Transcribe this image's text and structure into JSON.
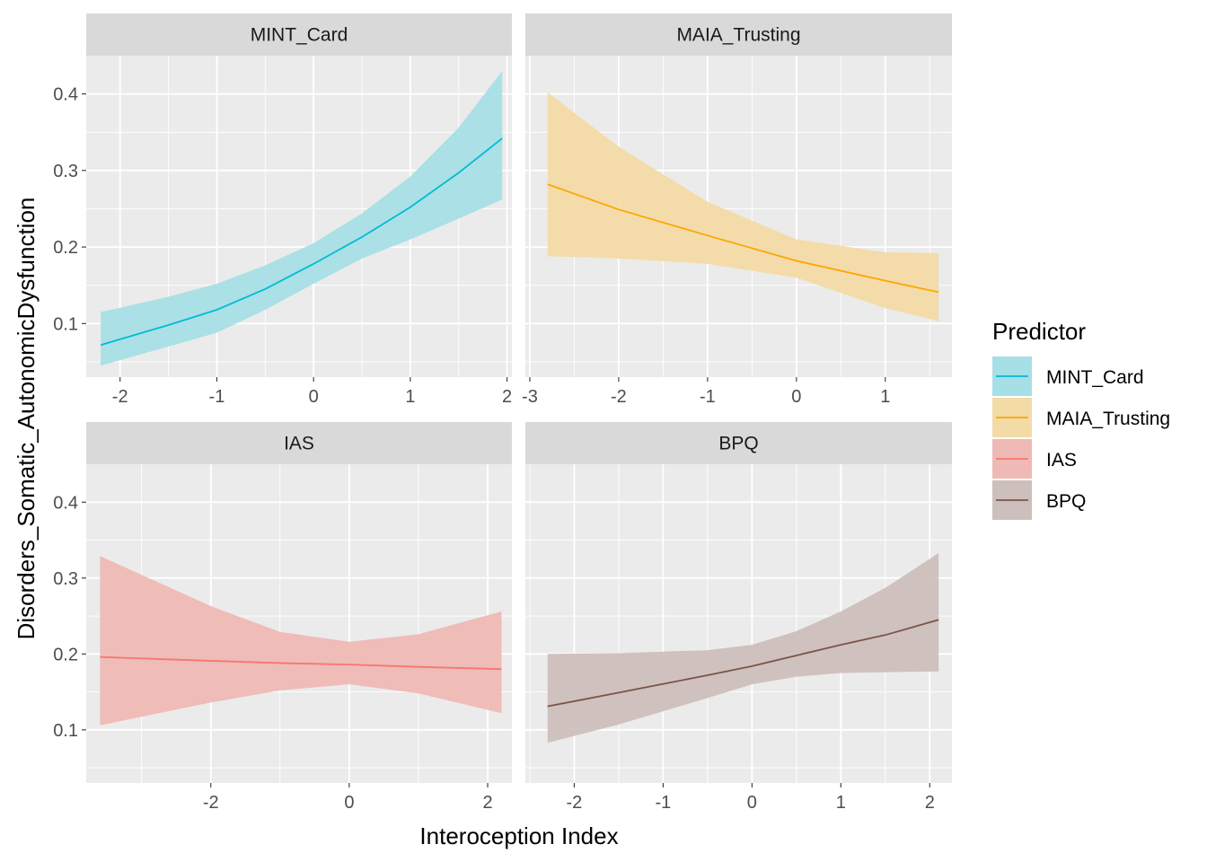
{
  "chart_data": {
    "type": "line",
    "facet_layout": "2x2 grid, free x scales, shared y scale",
    "xlabel": "Interoception Index",
    "ylabel": "Disorders_Somatic_AutonomicDysfunction",
    "ylim": [
      0.03,
      0.45
    ],
    "y_ticks": [
      0.1,
      0.2,
      0.3,
      0.4
    ],
    "y_tick_labels": [
      "0.1",
      "0.2",
      "0.3",
      "0.4"
    ],
    "grid": true,
    "legend": {
      "title": "Predictor",
      "placement": "right",
      "entries": [
        "MINT_Card",
        "MAIA_Trusting",
        "IAS",
        "BPQ"
      ]
    },
    "panels": [
      {
        "name": "MINT_Card",
        "color": "#00BCD4",
        "fill": "#A6DFE6",
        "xlim": [
          -2.35,
          2.05
        ],
        "x_ticks": [
          -2,
          -1,
          0,
          1,
          2
        ],
        "x_tick_labels": [
          "-2",
          "-1",
          "0",
          "1",
          "2"
        ],
        "x": [
          -2.2,
          -1.5,
          -1.0,
          -0.5,
          0.0,
          0.5,
          1.0,
          1.5,
          1.95
        ],
        "y": [
          0.072,
          0.098,
          0.118,
          0.145,
          0.178,
          0.213,
          0.252,
          0.297,
          0.342
        ],
        "lower": [
          0.045,
          0.07,
          0.088,
          0.118,
          0.152,
          0.185,
          0.21,
          0.237,
          0.262
        ],
        "upper": [
          0.115,
          0.135,
          0.152,
          0.176,
          0.205,
          0.244,
          0.292,
          0.356,
          0.43
        ]
      },
      {
        "name": "MAIA_Trusting",
        "color": "#FFA500",
        "fill": "#F3DBA6",
        "xlim": [
          -3.05,
          1.75
        ],
        "x_ticks": [
          -3,
          -2,
          -1,
          0,
          1
        ],
        "x_tick_labels": [
          "-3",
          "-2",
          "-1",
          "0",
          "1"
        ],
        "x": [
          -2.8,
          -2.0,
          -1.0,
          0.0,
          1.0,
          1.6
        ],
        "y": [
          0.282,
          0.249,
          0.215,
          0.182,
          0.156,
          0.141
        ],
        "lower": [
          0.188,
          0.185,
          0.178,
          0.16,
          0.12,
          0.103
        ],
        "upper": [
          0.402,
          0.331,
          0.259,
          0.21,
          0.193,
          0.192
        ]
      },
      {
        "name": "IAS",
        "color": "#F8766D",
        "fill": "#EFB9B5",
        "xlim": [
          -3.8,
          2.35
        ],
        "x_ticks": [
          -2,
          0,
          2
        ],
        "x_tick_labels": [
          "-2",
          "0",
          "2"
        ],
        "x": [
          -3.6,
          -2.0,
          -1.0,
          0.0,
          1.0,
          2.2
        ],
        "y": [
          0.196,
          0.191,
          0.188,
          0.186,
          0.183,
          0.18
        ],
        "lower": [
          0.106,
          0.136,
          0.152,
          0.16,
          0.148,
          0.122
        ],
        "upper": [
          0.329,
          0.263,
          0.229,
          0.216,
          0.226,
          0.256
        ]
      },
      {
        "name": "BPQ",
        "color": "#795548",
        "fill": "#CDBFBB",
        "xlim": [
          -2.55,
          2.25
        ],
        "x_ticks": [
          -2,
          -1,
          0,
          1,
          2
        ],
        "x_tick_labels": [
          "-2",
          "-1",
          "0",
          "1",
          "2"
        ],
        "x": [
          -2.3,
          -1.5,
          -0.5,
          0.0,
          0.5,
          1.0,
          1.5,
          2.1
        ],
        "y": [
          0.131,
          0.149,
          0.172,
          0.184,
          0.198,
          0.212,
          0.225,
          0.245
        ],
        "lower": [
          0.083,
          0.107,
          0.142,
          0.16,
          0.17,
          0.175,
          0.176,
          0.177
        ],
        "upper": [
          0.2,
          0.201,
          0.205,
          0.212,
          0.23,
          0.256,
          0.287,
          0.333
        ]
      }
    ]
  }
}
